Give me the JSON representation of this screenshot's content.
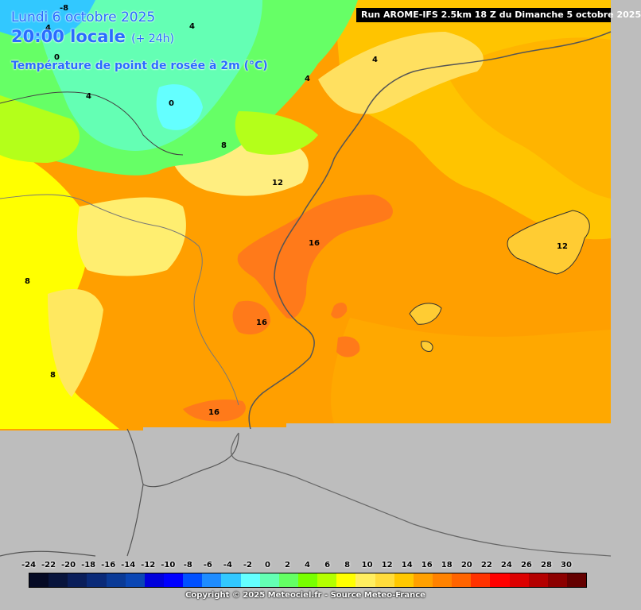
{
  "header": {
    "date": "Lundi 6 octobre 2025",
    "local_time": "20:00 locale",
    "offset": "(+ 24h)",
    "parameter": "Température de point de rosée à 2m (°C)"
  },
  "run_banner": "Run AROME-IFS 2.5km 18 Z du Dimanche 5 octobre 2025",
  "isoline_labels": [
    "-8",
    "4",
    "4",
    "0",
    "4",
    "4",
    "4",
    "0",
    "8",
    "12",
    "16",
    "12",
    "8",
    "16",
    "8",
    "16"
  ],
  "legend": {
    "labels": [
      "-24",
      "-22",
      "-20",
      "-18",
      "-16",
      "-14",
      "-12",
      "-10",
      "-8",
      "-6",
      "-4",
      "-2",
      "0",
      "2",
      "4",
      "6",
      "8",
      "10",
      "12",
      "14",
      "16",
      "18",
      "20",
      "22",
      "24",
      "26",
      "28",
      "30"
    ],
    "colors": [
      "#050a24",
      "#08143c",
      "#0a1e5a",
      "#0a2a78",
      "#0a3a96",
      "#0a46b4",
      "#0000dc",
      "#0000ff",
      "#0050ff",
      "#1e8cff",
      "#32c8ff",
      "#64ffff",
      "#64ffb4",
      "#64ff64",
      "#78ff00",
      "#b4ff00",
      "#ffff00",
      "#ffee60",
      "#ffdc3c",
      "#ffc800",
      "#ffa000",
      "#ff8200",
      "#ff6400",
      "#ff3200",
      "#ff0000",
      "#dc0000",
      "#b40000",
      "#8c0000",
      "#640000"
    ]
  },
  "copyright": "Copyright © 2025 Meteociel.fr - Source Meteo-France"
}
